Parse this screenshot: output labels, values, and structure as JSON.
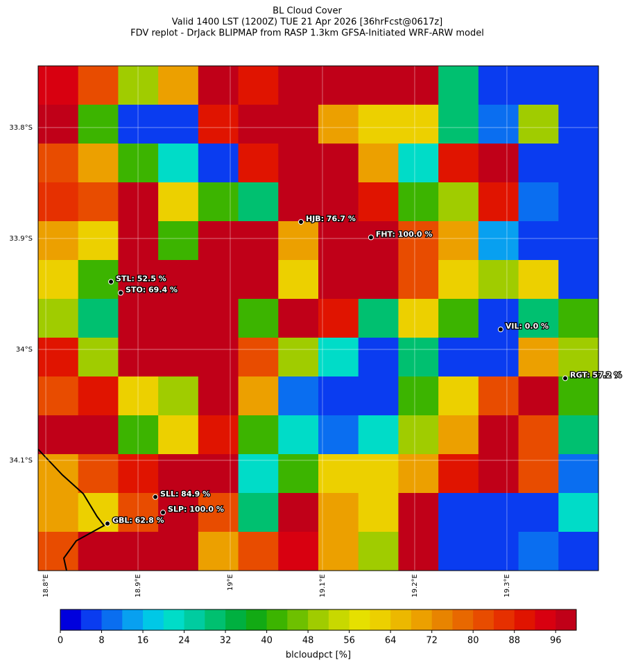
{
  "chart_data": {
    "type": "heatmap",
    "title": "BL Cloud Cover",
    "subtitle": "Valid 1400 LST (1200Z) TUE 21 Apr 2026 [36hrFcst@0617z]",
    "subtitle2": "FDV replot - DrJack BLIPMAP from RASP 1.3km GFSA-Initiated WRF-ARW model",
    "xlim": [
      18.7917,
      19.3993
    ],
    "ylim": [
      -33.7444,
      -34.1994
    ],
    "xticks": [
      {
        "value": 18.8,
        "label": "18.8°E"
      },
      {
        "value": 18.9,
        "label": "18.9°E"
      },
      {
        "value": 19.0,
        "label": "19°E"
      },
      {
        "value": 19.1,
        "label": "19.1°E"
      },
      {
        "value": 19.2,
        "label": "19.2°E"
      },
      {
        "value": 19.3,
        "label": "19.3°E"
      }
    ],
    "yticks": [
      {
        "value": -33.8,
        "label": "33.8°S"
      },
      {
        "value": -33.9,
        "label": "33.9°S"
      },
      {
        "value": -34.0,
        "label": "34°S"
      },
      {
        "value": -34.1,
        "label": "34.1°S"
      }
    ],
    "grid": true,
    "values": [
      [
        92,
        80,
        50,
        70,
        96,
        90,
        96,
        96,
        96,
        96,
        30,
        5,
        5,
        5
      ],
      [
        96,
        40,
        5,
        5,
        90,
        96,
        96,
        70,
        60,
        60,
        30,
        10,
        50,
        5
      ],
      [
        80,
        70,
        40,
        20,
        5,
        90,
        96,
        96,
        70,
        20,
        90,
        96,
        5,
        5
      ],
      [
        85,
        80,
        96,
        60,
        40,
        30,
        96,
        96,
        90,
        40,
        50,
        90,
        10,
        5
      ],
      [
        70,
        60,
        96,
        40,
        96,
        96,
        70,
        96,
        96,
        80,
        70,
        15,
        5,
        5
      ],
      [
        60,
        40,
        96,
        96,
        96,
        96,
        60,
        96,
        96,
        80,
        60,
        50,
        60,
        5
      ],
      [
        50,
        30,
        96,
        96,
        96,
        40,
        96,
        90,
        30,
        60,
        40,
        5,
        30,
        40
      ],
      [
        90,
        50,
        96,
        96,
        96,
        80,
        50,
        20,
        5,
        30,
        5,
        5,
        70,
        50
      ],
      [
        80,
        90,
        60,
        50,
        96,
        70,
        10,
        5,
        5,
        40,
        60,
        80,
        96,
        40
      ],
      [
        96,
        96,
        40,
        60,
        90,
        40,
        20,
        10,
        20,
        50,
        70,
        96,
        80,
        30
      ],
      [
        70,
        80,
        90,
        96,
        96,
        20,
        40,
        60,
        60,
        70,
        90,
        96,
        80,
        10
      ],
      [
        70,
        60,
        80,
        96,
        80,
        30,
        96,
        70,
        60,
        96,
        5,
        5,
        5,
        20
      ],
      [
        80,
        96,
        96,
        96,
        70,
        80,
        92,
        70,
        50,
        96,
        5,
        5,
        10,
        5
      ]
    ],
    "colormap": [
      "#0000dd",
      "#0a3cf0",
      "#0a6ef0",
      "#08a0f0",
      "#00c8e6",
      "#00dcc8",
      "#00cca0",
      "#00c070",
      "#00b040",
      "#12aa14",
      "#3cb400",
      "#6ec000",
      "#a0cc00",
      "#c8d800",
      "#e6e000",
      "#ecd000",
      "#ecb800",
      "#eca000",
      "#e88400",
      "#e86800",
      "#e84c00",
      "#e63000",
      "#e01400",
      "#d80010",
      "#c00018"
    ],
    "cblim": [
      0,
      100
    ],
    "cbticks": [
      0,
      8,
      16,
      24,
      32,
      40,
      48,
      56,
      64,
      72,
      80,
      88,
      96
    ],
    "cblabel": "blcloudpct [%]",
    "stations": [
      {
        "label": "HJB: 76.7 %",
        "lon": 19.0767,
        "lat": -33.885
      },
      {
        "label": "FHT: 100.0 %",
        "lon": 19.1526,
        "lat": -33.899
      },
      {
        "label": "STL: 52.5 %",
        "lon": 18.8707,
        "lat": -33.939
      },
      {
        "label": "STO: 69.4 %",
        "lon": 18.8812,
        "lat": -33.949
      },
      {
        "label": "VIL: 0.0 %",
        "lon": 19.2932,
        "lat": -33.982
      },
      {
        "label": "RGT: 57.2 %",
        "lon": 19.3632,
        "lat": -34.026
      },
      {
        "label": "SLL: 84.9 %",
        "lon": 18.9188,
        "lat": -34.133
      },
      {
        "label": "SLP: 100.0 %",
        "lon": 18.9271,
        "lat": -34.147
      },
      {
        "label": "GBL: 62.8 %",
        "lon": 18.8669,
        "lat": -34.157
      }
    ]
  }
}
